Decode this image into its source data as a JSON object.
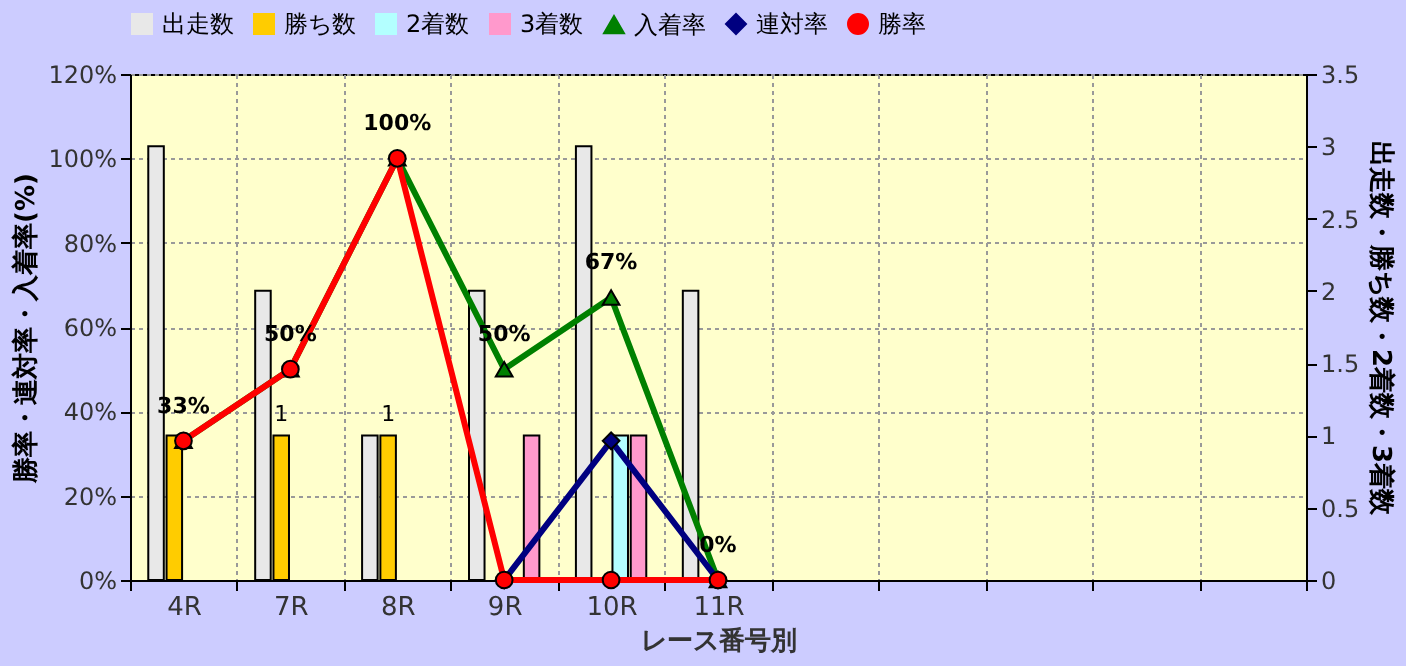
{
  "chart_data": {
    "type": "bar",
    "xlabel": "レース番号別",
    "ylabel": "勝率・連対率・入着率(%)",
    "y2label": "出走数・勝ち数・2着数・3着数",
    "categories": [
      "4R",
      "7R",
      "8R",
      "9R",
      "10R",
      "11R",
      null,
      null,
      null,
      null,
      null
    ],
    "series": [
      {
        "name": "出走数",
        "type": "bar",
        "axis": "y2",
        "color": "#e8e8e8",
        "values": [
          3,
          2,
          1,
          2,
          3,
          2,
          null,
          null,
          null,
          null,
          null
        ]
      },
      {
        "name": "勝ち数",
        "type": "bar",
        "axis": "y2",
        "color": "#ffcc00",
        "values": [
          1,
          1,
          1,
          0,
          0,
          0,
          null,
          null,
          null,
          null,
          null
        ],
        "value_labels": [
          null,
          "1",
          "1",
          null,
          null,
          null,
          null,
          null,
          null,
          null,
          null
        ]
      },
      {
        "name": "2着数",
        "type": "bar",
        "axis": "y2",
        "color": "#b3ffff",
        "values": [
          0,
          0,
          0,
          0,
          1,
          0,
          null,
          null,
          null,
          null,
          null
        ]
      },
      {
        "name": "3着数",
        "type": "bar",
        "axis": "y2",
        "color": "#ff99cc",
        "values": [
          0,
          0,
          0,
          1,
          1,
          0,
          null,
          null,
          null,
          null,
          null
        ]
      },
      {
        "name": "入着率",
        "type": "line",
        "marker": "triangle",
        "color": "#008000",
        "values": [
          33,
          50,
          100,
          50,
          67,
          0,
          null,
          null,
          null,
          null,
          null
        ],
        "value_labels": [
          "33%",
          "50%",
          "100%",
          "50%",
          "67%",
          "0%",
          null,
          null,
          null,
          null,
          null
        ]
      },
      {
        "name": "連対率",
        "type": "line",
        "marker": "diamond",
        "color": "#000080",
        "values": [
          null,
          null,
          null,
          0,
          33,
          0,
          null,
          null,
          null,
          null,
          null
        ]
      },
      {
        "name": "勝率",
        "type": "line",
        "marker": "circle",
        "color": "#ff0000",
        "values": [
          33,
          50,
          100,
          0,
          0,
          0,
          null,
          null,
          null,
          null,
          null
        ]
      }
    ],
    "ylim": [
      0,
      120
    ],
    "yticks": [
      {
        "value": 0,
        "label": "0%"
      },
      {
        "value": 20,
        "label": "20%"
      },
      {
        "value": 40,
        "label": "40%"
      },
      {
        "value": 60,
        "label": "60%"
      },
      {
        "value": 80,
        "label": "80%"
      },
      {
        "value": 100,
        "label": "100%"
      },
      {
        "value": 120,
        "label": "120%"
      }
    ],
    "y2lim": [
      0,
      3.5
    ],
    "y2ticks": [
      0,
      0.5,
      1,
      1.5,
      2,
      2.5,
      3,
      3.5
    ],
    "grid": true,
    "legend": "top",
    "line_style": "solid"
  }
}
